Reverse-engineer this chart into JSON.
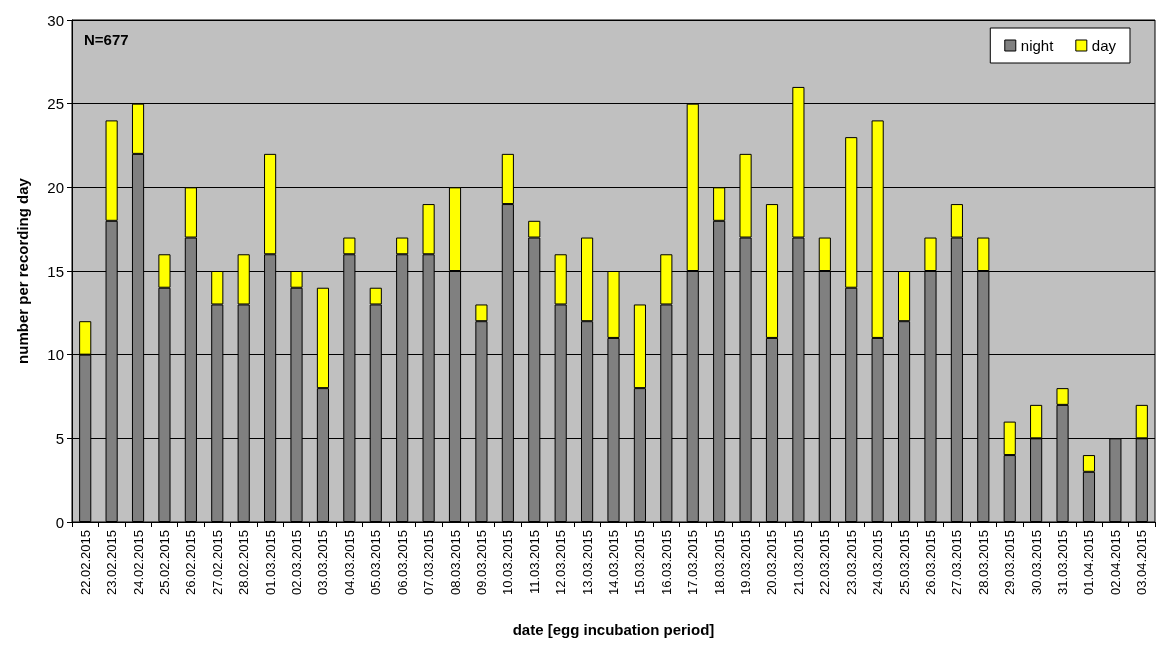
{
  "chart_data": {
    "type": "bar",
    "stacked": true,
    "xlabel": "date [egg incubation period]",
    "ylabel": "number per recording day",
    "annotations": [
      "N=677"
    ],
    "categories": [
      "22.02.2015",
      "23.02.2015",
      "24.02.2015",
      "25.02.2015",
      "26.02.2015",
      "27.02.2015",
      "28.02.2015",
      "01.03.2015",
      "02.03.2015",
      "03.03.2015",
      "04.03.2015",
      "05.03.2015",
      "06.03.2015",
      "07.03.2015",
      "08.03.2015",
      "09.03.2015",
      "10.03.2015",
      "11.03.2015",
      "12.03.2015",
      "13.03.2015",
      "14.03.2015",
      "15.03.2015",
      "16.03.2015",
      "17.03.2015",
      "18.03.2015",
      "19.03.2015",
      "20.03.2015",
      "21.03.2015",
      "22.03.2015",
      "23.03.2015",
      "24.03.2015",
      "25.03.2015",
      "26.03.2015",
      "27.03.2015",
      "28.03.2015",
      "29.03.2015",
      "30.03.2015",
      "31.03.2015",
      "01.04.2015",
      "02.04.2015",
      "03.04.2015"
    ],
    "series": [
      {
        "name": "night",
        "color": "#808080",
        "values": [
          10,
          18,
          22,
          14,
          17,
          13,
          13,
          16,
          14,
          8,
          16,
          13,
          16,
          16,
          15,
          12,
          19,
          17,
          13,
          12,
          11,
          8,
          13,
          15,
          18,
          17,
          11,
          17,
          15,
          14,
          11,
          12,
          15,
          17,
          15,
          4,
          5,
          7,
          3,
          5,
          5
        ]
      },
      {
        "name": "day",
        "color": "#ffff00",
        "values": [
          2,
          6,
          3,
          2,
          3,
          2,
          3,
          6,
          1,
          6,
          1,
          1,
          1,
          3,
          5,
          1,
          3,
          1,
          3,
          5,
          4,
          5,
          3,
          10,
          2,
          5,
          8,
          9,
          2,
          9,
          13,
          3,
          2,
          2,
          2,
          2,
          2,
          1,
          1,
          0,
          2
        ]
      }
    ],
    "ylim": [
      0,
      30
    ],
    "yticks": [
      0,
      5,
      10,
      15,
      20,
      25,
      30
    ],
    "grid": "y",
    "legend": "top right"
  }
}
